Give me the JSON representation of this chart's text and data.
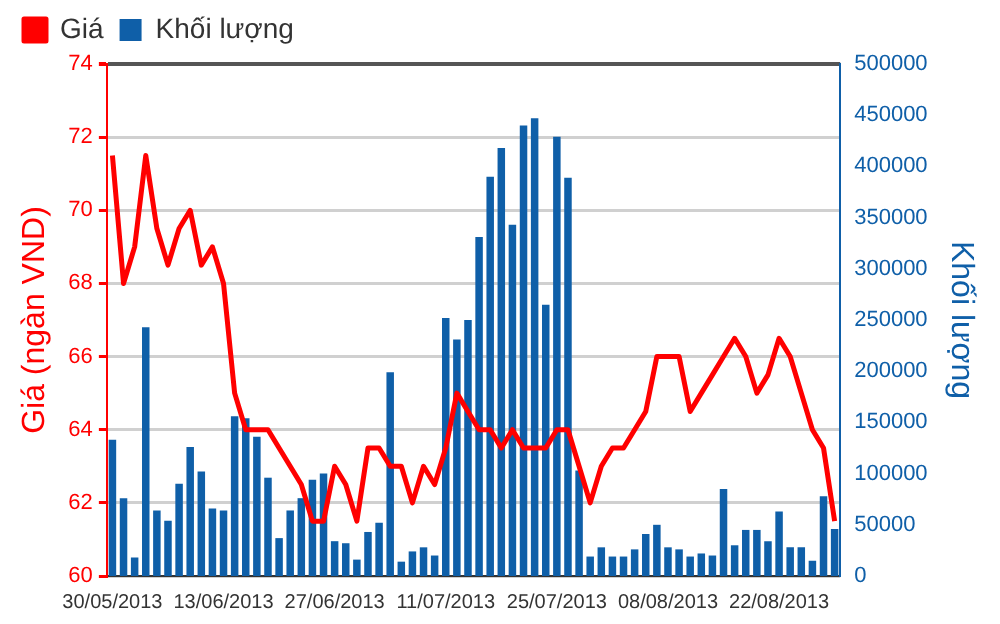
{
  "chart_data": {
    "type": "bar",
    "xlabel": null,
    "ylabel": "Giá (ngàn VND)",
    "y2label": "Khối lượng",
    "categories": [
      "30/05/2013",
      null,
      null,
      null,
      null,
      null,
      null,
      null,
      null,
      null,
      "13/06/2013",
      null,
      null,
      null,
      null,
      null,
      null,
      null,
      null,
      null,
      "27/06/2013",
      null,
      null,
      null,
      null,
      null,
      null,
      null,
      null,
      null,
      "11/07/2013",
      null,
      null,
      null,
      null,
      null,
      null,
      null,
      null,
      null,
      "25/07/2013",
      null,
      null,
      null,
      null,
      null,
      null,
      null,
      null,
      null,
      "08/08/2013",
      null,
      null,
      null,
      null,
      null,
      null,
      null,
      null,
      null,
      "22/08/2013",
      null,
      null,
      null,
      null,
      null
    ],
    "series": [
      {
        "name": "Giá",
        "type": "line",
        "axis": "y",
        "color": "#ff0000",
        "values": [
          71.5,
          68.0,
          69.0,
          71.5,
          69.5,
          68.5,
          69.5,
          70.0,
          68.5,
          69.0,
          68.0,
          65.0,
          64.0,
          64.0,
          64.0,
          63.5,
          63.0,
          62.5,
          61.5,
          61.5,
          63.0,
          62.5,
          61.5,
          63.5,
          63.5,
          63.0,
          63.0,
          62.0,
          63.0,
          62.5,
          63.5,
          65.0,
          64.5,
          64.0,
          64.0,
          63.5,
          64.0,
          63.5,
          63.5,
          63.5,
          64.0,
          64.0,
          63.0,
          62.0,
          63.0,
          63.5,
          63.5,
          64.0,
          64.5,
          66.0,
          66.0,
          66.0,
          64.5,
          65.0,
          65.5,
          66.0,
          66.5,
          66.0,
          65.0,
          65.5,
          66.5,
          66.0,
          65.0,
          64.0,
          63.5,
          61.5
        ]
      },
      {
        "name": "Khối lượng",
        "axis": "y2",
        "color": "#0f5fa8",
        "values": [
          133000,
          76000,
          18000,
          243000,
          64000,
          54000,
          90000,
          126000,
          102000,
          66000,
          64000,
          156000,
          154000,
          136000,
          96000,
          37000,
          64000,
          76000,
          94000,
          100000,
          34000,
          32000,
          16000,
          43000,
          52000,
          199000,
          14000,
          24000,
          28000,
          20000,
          252000,
          231000,
          250000,
          331000,
          390000,
          418000,
          343000,
          440000,
          447000,
          265000,
          429000,
          389000,
          103000,
          19000,
          28000,
          19000,
          19000,
          26000,
          41000,
          50000,
          28000,
          26000,
          19000,
          22000,
          20000,
          85000,
          30000,
          45000,
          45000,
          34000,
          63000,
          28000,
          28000,
          15000,
          78000,
          46000
        ]
      }
    ],
    "ylim": [
      60,
      74
    ],
    "yticks": [
      60,
      62,
      64,
      66,
      68,
      70,
      72,
      74
    ],
    "y2lim": [
      0,
      500000
    ],
    "y2ticks": [
      0,
      50000,
      100000,
      150000,
      200000,
      250000,
      300000,
      350000,
      400000,
      450000,
      500000
    ],
    "grid": "y",
    "legend": "top left",
    "marker": "none",
    "line_style": "solid"
  }
}
